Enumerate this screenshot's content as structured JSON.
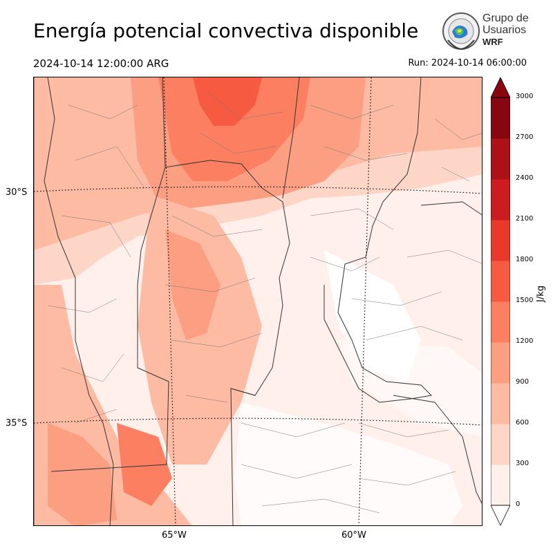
{
  "header": {
    "title": "Energía potencial convectiva disponible",
    "valid_time": "2024-10-14 12:00:00 ARG",
    "run_time": "Run: 2024-10-14 06:00:00"
  },
  "logo": {
    "line1": "Grupo de",
    "line2": "Usuarios",
    "line3": "WRF"
  },
  "map": {
    "lat_labels": [
      "30°S",
      "35°S"
    ],
    "lon_labels": [
      "65°W",
      "60°W"
    ]
  },
  "colorbar": {
    "units": "J/kg",
    "ticks": [
      "0",
      "300",
      "600",
      "900",
      "1200",
      "1500",
      "1800",
      "2100",
      "2400",
      "2700",
      "3000"
    ],
    "colors": [
      "#fff0eb",
      "#fdd6c8",
      "#fcbba2",
      "#fc9e82",
      "#fb7f60",
      "#f65a40",
      "#e8392b",
      "#cc1c1f",
      "#ac1117",
      "#870610"
    ]
  }
}
